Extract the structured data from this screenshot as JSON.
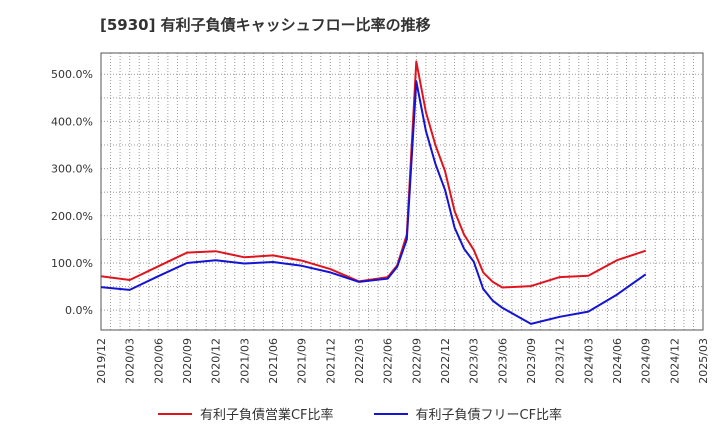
{
  "chart_data": {
    "type": "line",
    "title": "[5930]  有利子負債キャッシュフロー比率の推移",
    "y_tick_labels": [
      "0.0%",
      "100.0%",
      "200.0%",
      "300.0%",
      "400.0%",
      "500.0%"
    ],
    "y_tick_values": [
      0,
      100,
      200,
      300,
      400,
      500
    ],
    "ylim": [
      -42,
      545
    ],
    "x_tick_labels": [
      "2019/12",
      "2020/03",
      "2020/06",
      "2020/09",
      "2020/12",
      "2021/03",
      "2021/06",
      "2021/09",
      "2021/12",
      "2022/03",
      "2022/06",
      "2022/09",
      "2022/12",
      "2023/03",
      "2023/06",
      "2023/09",
      "2023/12",
      "2024/03",
      "2024/06",
      "2024/09",
      "2024/12",
      "2025/03"
    ],
    "x_minor_per_major": 3,
    "grid": true,
    "legend_position": "bottom",
    "series": [
      {
        "name": "有利子負債営業CF比率",
        "color": "#e0141e",
        "points": [
          [
            "2019/12",
            72
          ],
          [
            "2020/03",
            64
          ],
          [
            "2020/06",
            93
          ],
          [
            "2020/09",
            122
          ],
          [
            "2020/12",
            125
          ],
          [
            "2021/03",
            112
          ],
          [
            "2021/06",
            116
          ],
          [
            "2021/09",
            105
          ],
          [
            "2021/12",
            87
          ],
          [
            "2022/03",
            61
          ],
          [
            "2022/06",
            70
          ],
          [
            "2022/07",
            95
          ],
          [
            "2022/08",
            160
          ],
          [
            "2022/09",
            527
          ],
          [
            "2022/10",
            420
          ],
          [
            "2022/11",
            350
          ],
          [
            "2022/12",
            295
          ],
          [
            "2023/01",
            210
          ],
          [
            "2023/02",
            160
          ],
          [
            "2023/03",
            128
          ],
          [
            "2023/04",
            80
          ],
          [
            "2023/05",
            60
          ],
          [
            "2023/06",
            48
          ],
          [
            "2023/09",
            51
          ],
          [
            "2023/12",
            70
          ],
          [
            "2024/03",
            73
          ],
          [
            "2024/06",
            106
          ],
          [
            "2024/09",
            126
          ]
        ]
      },
      {
        "name": "有利子負債フリーCF比率",
        "color": "#1414d2",
        "points": [
          [
            "2019/12",
            49
          ],
          [
            "2020/03",
            43
          ],
          [
            "2020/06",
            72
          ],
          [
            "2020/09",
            100
          ],
          [
            "2020/12",
            106
          ],
          [
            "2021/03",
            99
          ],
          [
            "2021/06",
            102
          ],
          [
            "2021/09",
            94
          ],
          [
            "2021/12",
            80
          ],
          [
            "2022/03",
            60
          ],
          [
            "2022/06",
            67
          ],
          [
            "2022/07",
            92
          ],
          [
            "2022/08",
            150
          ],
          [
            "2022/09",
            485
          ],
          [
            "2022/10",
            380
          ],
          [
            "2022/11",
            310
          ],
          [
            "2022/12",
            255
          ],
          [
            "2023/01",
            175
          ],
          [
            "2023/02",
            130
          ],
          [
            "2023/03",
            103
          ],
          [
            "2023/04",
            45
          ],
          [
            "2023/05",
            20
          ],
          [
            "2023/06",
            5
          ],
          [
            "2023/09",
            -29
          ],
          [
            "2023/12",
            -14
          ],
          [
            "2024/03",
            -3
          ],
          [
            "2024/06",
            33
          ],
          [
            "2024/09",
            76
          ]
        ]
      }
    ]
  }
}
